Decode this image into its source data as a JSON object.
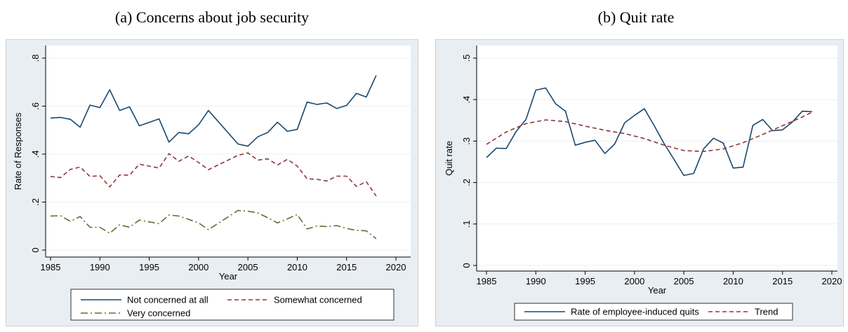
{
  "captions": {
    "a": "(a) Concerns about job security",
    "b": "(b) Quit rate"
  },
  "chart_data": [
    {
      "type": "line",
      "title": "",
      "xlabel": "Year",
      "ylabel": "Rate of Responses",
      "xlim": [
        1985,
        2020
      ],
      "ylim": [
        0,
        0.8
      ],
      "x_ticks": [
        1985,
        1990,
        1995,
        2000,
        2005,
        2010,
        2015,
        2020
      ],
      "y_ticks": [
        0,
        0.2,
        0.4,
        0.6,
        0.8
      ],
      "y_tick_labels": [
        "0",
        ".2",
        ".4",
        ".6",
        ".8"
      ],
      "grid": true,
      "legend_position": "bottom",
      "colors": [
        "#1a476f",
        "#90353b",
        "#55752f"
      ],
      "x": [
        1985,
        1986,
        1987,
        1988,
        1989,
        1990,
        1991,
        1992,
        1993,
        1994,
        1996,
        1997,
        1998,
        1999,
        2000,
        2001,
        2004,
        2005,
        2006,
        2007,
        2008,
        2009,
        2010,
        2011,
        2012,
        2013,
        2014,
        2015,
        2016,
        2017,
        2018
      ],
      "series": [
        {
          "name": "Not concerned at all",
          "style": "solid",
          "values": [
            0.55,
            0.553,
            0.545,
            0.512,
            0.604,
            0.594,
            0.668,
            0.582,
            0.597,
            0.518,
            0.547,
            0.45,
            0.49,
            0.485,
            0.522,
            0.582,
            0.442,
            0.433,
            0.472,
            0.49,
            0.533,
            0.495,
            0.503,
            0.617,
            0.607,
            0.613,
            0.59,
            0.603,
            0.653,
            0.638,
            0.728
          ]
        },
        {
          "name": "Somewhat concerned",
          "style": "dashed",
          "values": [
            0.307,
            0.302,
            0.336,
            0.346,
            0.307,
            0.31,
            0.263,
            0.313,
            0.312,
            0.358,
            0.342,
            0.402,
            0.37,
            0.392,
            0.365,
            0.335,
            0.395,
            0.405,
            0.375,
            0.38,
            0.355,
            0.378,
            0.35,
            0.297,
            0.295,
            0.288,
            0.308,
            0.308,
            0.265,
            0.285,
            0.225
          ]
        },
        {
          "name": "Very concerned",
          "style": "dashdot",
          "values": [
            0.142,
            0.143,
            0.12,
            0.14,
            0.095,
            0.095,
            0.07,
            0.105,
            0.095,
            0.125,
            0.11,
            0.146,
            0.142,
            0.128,
            0.113,
            0.085,
            0.165,
            0.162,
            0.155,
            0.135,
            0.113,
            0.13,
            0.148,
            0.088,
            0.1,
            0.098,
            0.102,
            0.09,
            0.082,
            0.08,
            0.047
          ]
        }
      ]
    },
    {
      "type": "line",
      "title": "",
      "xlabel": "Year",
      "ylabel": "Quit rate",
      "xlim": [
        1985,
        2020
      ],
      "ylim": [
        0,
        0.5
      ],
      "x_ticks": [
        1985,
        1990,
        1995,
        2000,
        2005,
        2010,
        2015,
        2020
      ],
      "y_ticks": [
        0,
        0.1,
        0.2,
        0.3,
        0.4,
        0.5
      ],
      "y_tick_labels": [
        "0",
        ".1",
        ".2",
        ".3",
        ".4",
        ".5"
      ],
      "grid": true,
      "legend_position": "bottom",
      "colors": [
        "#1a476f",
        "#90353b"
      ],
      "series": [
        {
          "name": "Rate of employee-induced quits",
          "style": "solid",
          "x": [
            1985,
            1986,
            1987,
            1988,
            1989,
            1990,
            1991,
            1992,
            1993,
            1994,
            1995,
            1996,
            1997,
            1998,
            1999,
            2000,
            2001,
            2002,
            2003,
            2004,
            2005,
            2006,
            2007,
            2008,
            2009,
            2010,
            2011,
            2012,
            2013,
            2014,
            2015,
            2016,
            2017,
            2018
          ],
          "values": [
            0.26,
            0.283,
            0.282,
            0.323,
            0.352,
            0.423,
            0.428,
            0.39,
            0.372,
            0.29,
            0.297,
            0.302,
            0.27,
            0.293,
            0.344,
            0.362,
            0.378,
            0.337,
            0.294,
            0.256,
            0.217,
            0.222,
            0.281,
            0.307,
            0.295,
            0.235,
            0.237,
            0.338,
            0.352,
            0.325,
            0.327,
            0.346,
            0.372,
            0.371
          ]
        },
        {
          "name": "Trend",
          "style": "dashed",
          "x": [
            1985,
            1987,
            1989,
            1991,
            1993,
            1995,
            1997,
            1999,
            2001,
            2003,
            2005,
            2007,
            2009,
            2011,
            2013,
            2015,
            2017,
            2018
          ],
          "values": [
            0.292,
            0.322,
            0.342,
            0.351,
            0.347,
            0.336,
            0.326,
            0.318,
            0.306,
            0.29,
            0.277,
            0.275,
            0.281,
            0.296,
            0.316,
            0.337,
            0.358,
            0.37
          ]
        }
      ]
    }
  ]
}
